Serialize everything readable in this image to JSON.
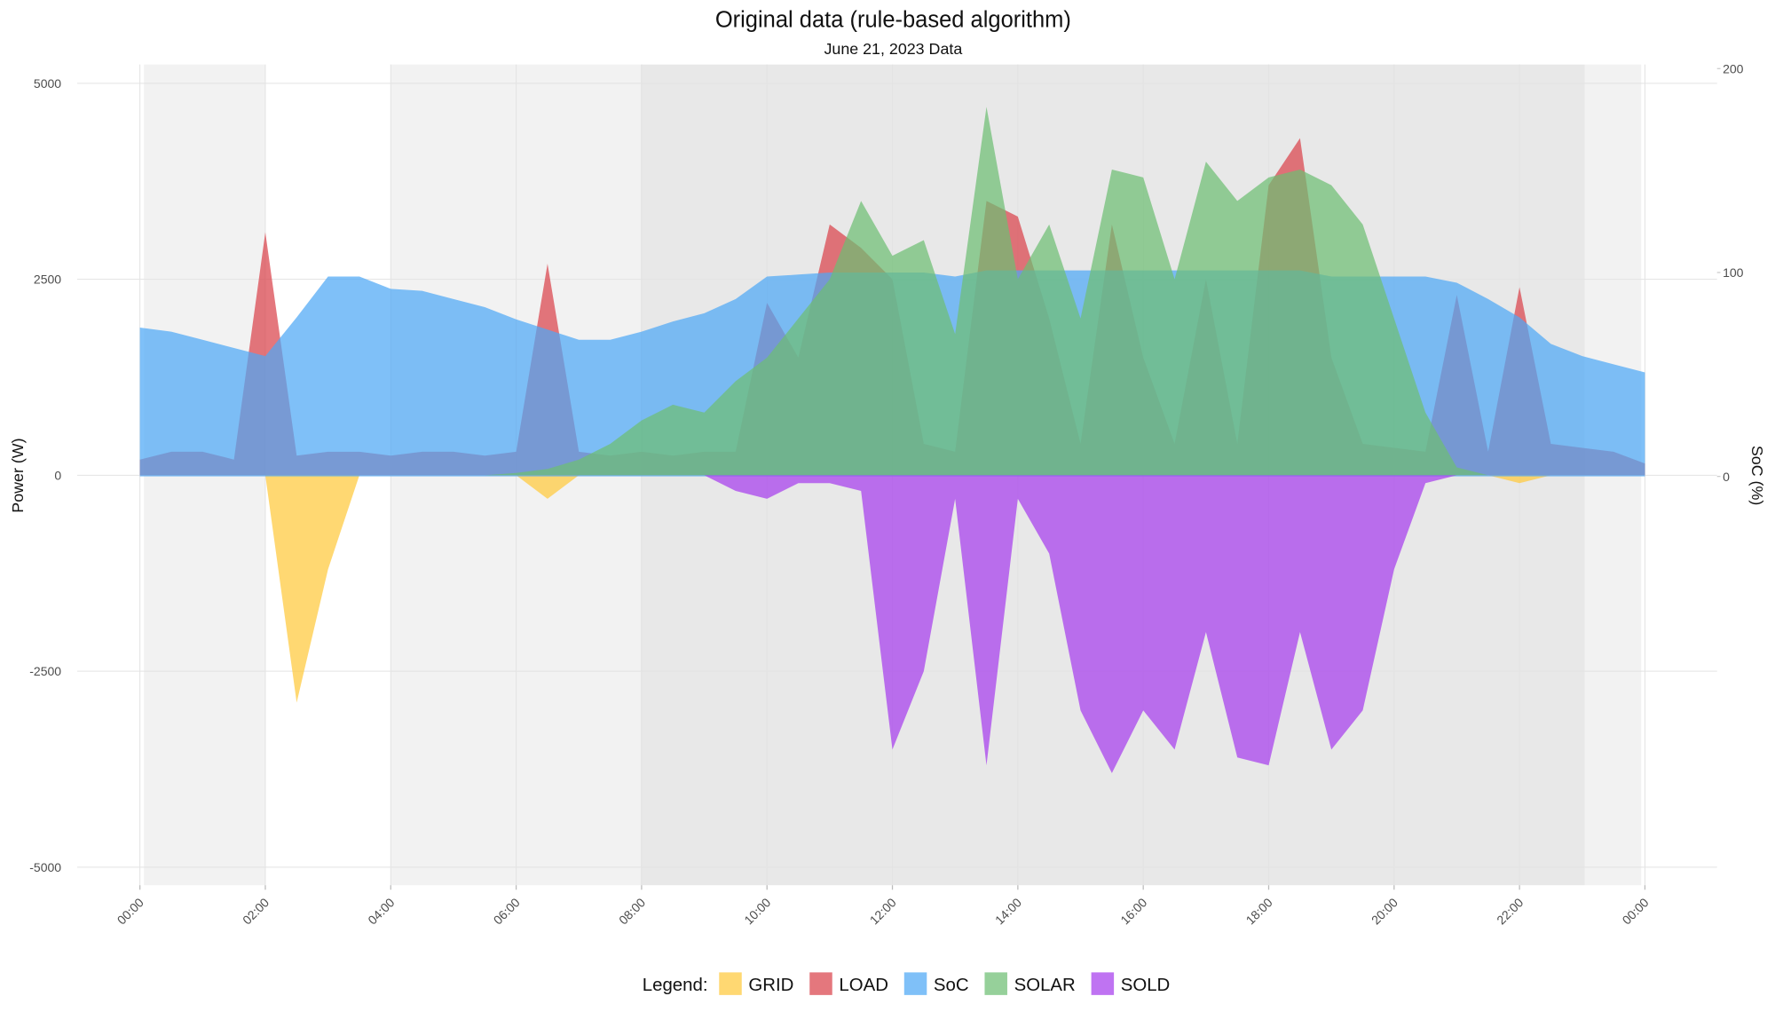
{
  "chart_data": {
    "type": "area",
    "title": "Original data (rule-based algorithm)",
    "subtitle": "June 21, 2023 Data",
    "y_label": "Power (W)",
    "y2_label": "SoC (%)",
    "legend_title": "Legend:",
    "legend": "bottom",
    "grid": true,
    "x": [
      0,
      0.5,
      1,
      1.5,
      2,
      2.5,
      3,
      3.5,
      4,
      4.5,
      5,
      5.5,
      6,
      6.5,
      7,
      7.5,
      8,
      8.5,
      9,
      9.5,
      10,
      10.5,
      11,
      11.5,
      12,
      12.5,
      13,
      13.5,
      14,
      14.5,
      15,
      15.5,
      16,
      16.5,
      17,
      17.5,
      18,
      18.5,
      19,
      19.5,
      20,
      20.5,
      21,
      21.5,
      22,
      22.5,
      23,
      23.5,
      24
    ],
    "xlim": [
      -1,
      25.15
    ],
    "xticks": [
      {
        "value": 0,
        "label": "00:00"
      },
      {
        "value": 2,
        "label": "02:00"
      },
      {
        "value": 4,
        "label": "04:00"
      },
      {
        "value": 6,
        "label": "06:00"
      },
      {
        "value": 8,
        "label": "08:00"
      },
      {
        "value": 10,
        "label": "10:00"
      },
      {
        "value": 12,
        "label": "12:00"
      },
      {
        "value": 14,
        "label": "14:00"
      },
      {
        "value": 16,
        "label": "16:00"
      },
      {
        "value": 18,
        "label": "18:00"
      },
      {
        "value": 20,
        "label": "20:00"
      },
      {
        "value": 22,
        "label": "22:00"
      },
      {
        "value": 24,
        "label": "00:00"
      }
    ],
    "ylim": [
      -5230,
      5240
    ],
    "yticks": [
      -5000,
      -2500,
      0,
      2500,
      5000
    ],
    "y2lim": [
      -200.5,
      202
    ],
    "y2ticks": [
      0,
      100,
      200
    ],
    "series": [
      {
        "name": "GRID",
        "color": "#FFC93C",
        "values": [
          0,
          0,
          0,
          0,
          0,
          -2900,
          -1200,
          0,
          0,
          0,
          0,
          0,
          0,
          -300,
          0,
          0,
          0,
          0,
          0,
          0,
          0,
          0,
          0,
          0,
          0,
          0,
          0,
          0,
          0,
          0,
          0,
          0,
          0,
          0,
          0,
          0,
          0,
          0,
          0,
          0,
          0,
          0,
          0,
          0,
          -100,
          0,
          0,
          0,
          0
        ]
      },
      {
        "name": "LOAD",
        "color": "#D9434B",
        "values": [
          200,
          300,
          300,
          200,
          3100,
          250,
          300,
          300,
          250,
          300,
          300,
          250,
          300,
          2700,
          300,
          250,
          300,
          250,
          300,
          300,
          2200,
          1500,
          3200,
          2900,
          2500,
          400,
          300,
          3500,
          3300,
          2000,
          400,
          3200,
          1500,
          400,
          2500,
          400,
          3700,
          4300,
          1500,
          400,
          350,
          300,
          2300,
          300,
          2400,
          400,
          350,
          300,
          150
        ]
      },
      {
        "name": "SoC",
        "color": "#4DA8F5",
        "axis": "y2",
        "values": [
          73,
          71,
          67,
          63,
          59,
          78,
          98,
          98,
          92,
          91,
          87,
          83,
          77,
          72,
          67,
          67,
          71,
          76,
          80,
          87,
          98,
          99,
          100,
          100,
          100,
          100,
          98,
          101,
          101,
          101,
          101,
          101,
          101,
          101,
          101,
          101,
          101,
          101,
          98,
          98,
          98,
          98,
          95,
          87,
          78,
          65,
          59,
          55,
          51
        ]
      },
      {
        "name": "SOLAR",
        "color": "#6DBE73",
        "values": [
          0,
          0,
          0,
          0,
          0,
          0,
          0,
          0,
          0,
          0,
          0,
          0,
          30,
          80,
          200,
          400,
          700,
          900,
          800,
          1200,
          1500,
          2000,
          2500,
          3500,
          2800,
          3000,
          1800,
          4700,
          2500,
          3200,
          2000,
          3900,
          3800,
          2500,
          4000,
          3500,
          3800,
          3900,
          3700,
          3200,
          2000,
          800,
          100,
          0,
          0,
          0,
          0,
          0,
          0
        ]
      },
      {
        "name": "SOLD",
        "color": "#A63DED",
        "values": [
          0,
          0,
          0,
          0,
          0,
          0,
          0,
          0,
          0,
          0,
          0,
          0,
          0,
          0,
          0,
          0,
          0,
          0,
          0,
          -200,
          -300,
          -100,
          -100,
          -200,
          -3500,
          -2500,
          -300,
          -3700,
          -300,
          -1000,
          -3000,
          -3800,
          -3000,
          -3500,
          -2000,
          -3600,
          -3700,
          -2000,
          -3500,
          -3000,
          -1200,
          -100,
          0,
          0,
          0,
          0,
          0,
          0,
          0
        ]
      }
    ]
  }
}
